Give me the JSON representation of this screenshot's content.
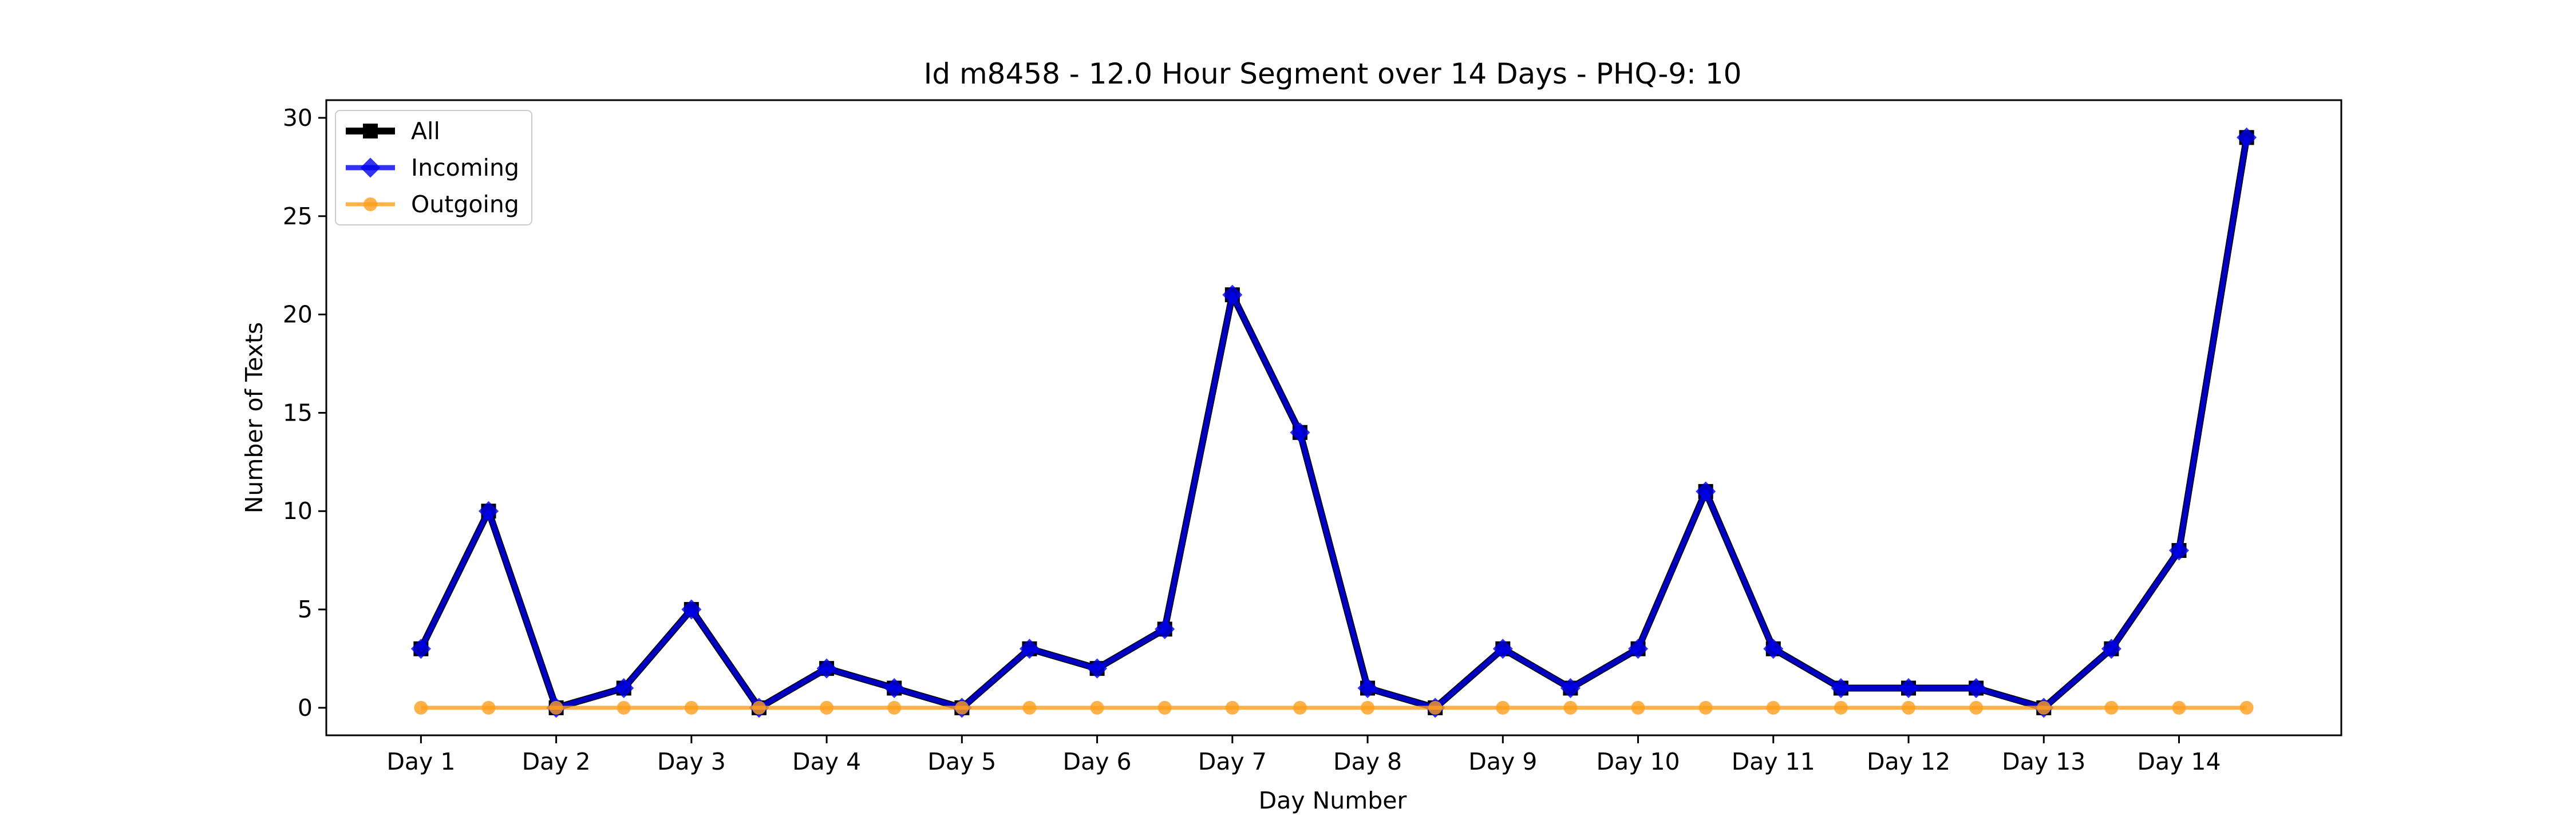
{
  "chart_data": {
    "type": "line",
    "title": "Id m8458 - 12.0 Hour Segment over 14 Days - PHQ-9: 10",
    "xlabel": "Day Number",
    "ylabel": "Number of Texts",
    "x_tick_labels": [
      "Day 1",
      "Day 2",
      "Day 3",
      "Day 4",
      "Day 5",
      "Day 6",
      "Day 7",
      "Day 8",
      "Day 9",
      "Day 10",
      "Day 11",
      "Day 12",
      "Day 13",
      "Day 14"
    ],
    "x": [
      1,
      1.5,
      2,
      2.5,
      3,
      3.5,
      4,
      4.5,
      5,
      5.5,
      6,
      6.5,
      7,
      7.5,
      8,
      8.5,
      9,
      9.5,
      10,
      10.5,
      11,
      11.5,
      12,
      12.5,
      13,
      13.5,
      14,
      14.5
    ],
    "ylim": [
      -1.4,
      30.9
    ],
    "y_ticks": [
      0,
      5,
      10,
      15,
      20,
      25,
      30
    ],
    "legend_position": "upper left",
    "grid": false,
    "series": [
      {
        "name": "All",
        "color": "#000000",
        "marker": "square",
        "values": [
          3,
          10,
          0,
          1,
          5,
          0,
          2,
          1,
          0,
          3,
          2,
          4,
          21,
          14,
          1,
          0,
          3,
          1,
          3,
          11,
          3,
          1,
          1,
          1,
          0,
          3,
          8,
          29
        ]
      },
      {
        "name": "Incoming",
        "color": "#0000ee",
        "marker": "diamond",
        "values": [
          3,
          10,
          0,
          1,
          5,
          0,
          2,
          1,
          0,
          3,
          2,
          4,
          21,
          14,
          1,
          0,
          3,
          1,
          3,
          11,
          3,
          1,
          1,
          1,
          0,
          3,
          8,
          29
        ]
      },
      {
        "name": "Outgoing",
        "color": "#ff9f1c",
        "marker": "circle",
        "values": [
          0,
          0,
          0,
          0,
          0,
          0,
          0,
          0,
          0,
          0,
          0,
          0,
          0,
          0,
          0,
          0,
          0,
          0,
          0,
          0,
          0,
          0,
          0,
          0,
          0,
          0,
          0,
          0
        ]
      }
    ]
  }
}
